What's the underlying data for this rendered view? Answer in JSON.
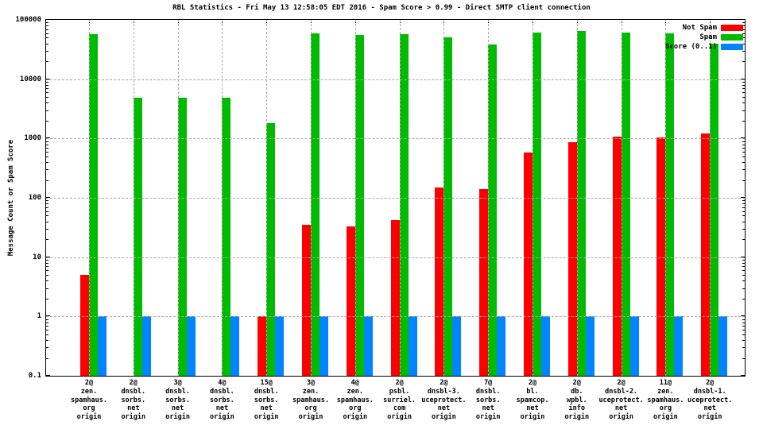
{
  "chart_data": {
    "type": "bar",
    "title": "RBL Statistics - Fri May 13 12:58:05 EDT 2016 - Spam Score > 0.99 - Direct SMTP client connection",
    "ylabel": "Message Count or Spam Score",
    "xlabel": "",
    "y_scale": "log",
    "ylim": [
      0.1,
      100000
    ],
    "y_tick_labels": [
      "100000",
      "10000",
      "1000",
      "100",
      "10",
      "1",
      "0.1"
    ],
    "grid": "dashed gray, horizontal at each decade and vertical at each category",
    "legend_position": "top-right-inside",
    "categories": [
      [
        "2@",
        "zen.",
        "spamhaus.",
        "org",
        "origin"
      ],
      [
        "2@",
        "dnsbl.",
        "sorbs.",
        "net",
        "origin"
      ],
      [
        "3@",
        "dnsbl.",
        "sorbs.",
        "net",
        "origin"
      ],
      [
        "4@",
        "dnsbl.",
        "sorbs.",
        "net",
        "origin"
      ],
      [
        "15@",
        "dnsbl.",
        "sorbs.",
        "net",
        "origin"
      ],
      [
        "3@",
        "zen.",
        "spamhaus.",
        "org",
        "origin"
      ],
      [
        "4@",
        "zen.",
        "spamhaus.",
        "org",
        "origin"
      ],
      [
        "2@",
        "psbl.",
        "surriel.",
        "com",
        "origin"
      ],
      [
        "2@",
        "dnsbl-3.",
        "uceprotect.",
        "net",
        "origin"
      ],
      [
        "7@",
        "dnsbl.",
        "sorbs.",
        "net",
        "origin"
      ],
      [
        "2@",
        "bl.",
        "spamcop.",
        "net",
        "origin"
      ],
      [
        "2@",
        "db.",
        "wpbl.",
        "info",
        "origin"
      ],
      [
        "2@",
        "dnsbl-2.",
        "uceprotect.",
        "net",
        "origin"
      ],
      [
        "11@",
        "zen.",
        "spamhaus.",
        "org",
        "origin"
      ],
      [
        "2@",
        "dnsbl-1.",
        "uceprotect.",
        "net",
        "origin"
      ]
    ],
    "series": [
      {
        "name": "Not Spam",
        "color": "#ff0000",
        "values": [
          5,
          0,
          0,
          0,
          1,
          35,
          33,
          42,
          150,
          140,
          580,
          860,
          1060,
          1030,
          1200
        ]
      },
      {
        "name": "Spam",
        "color": "#00bb00",
        "values": [
          57000,
          4800,
          4800,
          4800,
          1800,
          60000,
          55000,
          58000,
          50000,
          38000,
          61000,
          64000,
          61000,
          59000,
          40000
        ]
      },
      {
        "name": "Score (0..1)",
        "color": "#0084ff",
        "values": [
          1,
          1,
          1,
          1,
          1,
          1,
          1,
          1,
          1,
          1,
          1,
          1,
          1,
          1,
          1
        ]
      }
    ],
    "colors": {
      "axis": "#000000",
      "gridline": "#a8a8a8",
      "background": "#ffffff"
    }
  }
}
